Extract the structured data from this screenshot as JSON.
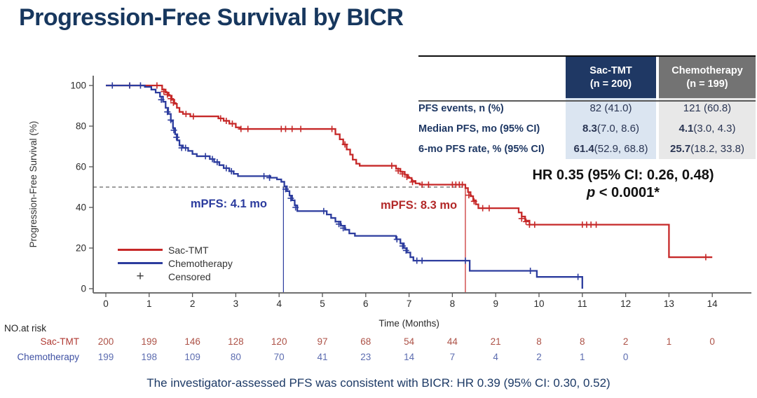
{
  "slide": {
    "title": "Progression-Free Survival by BICR",
    "footer": "The investigator-assessed PFS was consistent with BICR: HR 0.39 (95% CI: 0.30, 0.52)"
  },
  "chart_data": {
    "type": "line",
    "subtype": "kaplan-meier-step",
    "title": "",
    "xlabel": "Time (Months)",
    "ylabel": "Progression-Free Survival (%)",
    "xlim": [
      0,
      14
    ],
    "ylim": [
      0,
      100
    ],
    "xticks": [
      0,
      1,
      2,
      3,
      4,
      5,
      6,
      7,
      8,
      9,
      10,
      11,
      12,
      13,
      14
    ],
    "yticks": [
      0,
      20,
      40,
      60,
      80,
      100
    ],
    "grid": false,
    "legend_position": "lower-left-inside",
    "reference_line_y": 50,
    "series": [
      {
        "name": "Sac-TMT",
        "color": "#c62828",
        "median_pfs_months": 8.3,
        "median_line_x": 8.3,
        "end_x": 14.0,
        "steps": [
          [
            0,
            100
          ],
          [
            1.3,
            98
          ],
          [
            1.38,
            96.5
          ],
          [
            1.45,
            95
          ],
          [
            1.52,
            93
          ],
          [
            1.58,
            91
          ],
          [
            1.64,
            89
          ],
          [
            1.7,
            87
          ],
          [
            1.78,
            86
          ],
          [
            1.95,
            84.8
          ],
          [
            2.6,
            83.8
          ],
          [
            2.72,
            82.6
          ],
          [
            2.85,
            81.2
          ],
          [
            3.0,
            79.4
          ],
          [
            3.1,
            78.6
          ],
          [
            5.3,
            76
          ],
          [
            5.4,
            73.5
          ],
          [
            5.48,
            71
          ],
          [
            5.56,
            68.5
          ],
          [
            5.64,
            66
          ],
          [
            5.7,
            63.5
          ],
          [
            5.78,
            61.5
          ],
          [
            5.86,
            60.5
          ],
          [
            6.7,
            59
          ],
          [
            6.8,
            57.5
          ],
          [
            6.9,
            56
          ],
          [
            6.98,
            54.5
          ],
          [
            7.06,
            53
          ],
          [
            7.15,
            51.8
          ],
          [
            7.25,
            51.2
          ],
          [
            8.3,
            49.5
          ],
          [
            8.36,
            47.5
          ],
          [
            8.42,
            45.5
          ],
          [
            8.48,
            43.5
          ],
          [
            8.54,
            41.5
          ],
          [
            8.6,
            39.6
          ],
          [
            9.53,
            37.5
          ],
          [
            9.6,
            35.5
          ],
          [
            9.68,
            33.5
          ],
          [
            9.78,
            31.5
          ],
          [
            13.0,
            15.5
          ]
        ],
        "censors": [
          [
            0.55,
            100
          ],
          [
            1.18,
            100
          ],
          [
            1.34,
            97
          ],
          [
            1.42,
            95.5
          ],
          [
            1.5,
            93.5
          ],
          [
            1.56,
            91.5
          ],
          [
            1.85,
            86
          ],
          [
            2.02,
            84.8
          ],
          [
            2.65,
            83.8
          ],
          [
            2.78,
            82.6
          ],
          [
            2.92,
            81.2
          ],
          [
            3.12,
            78.6
          ],
          [
            3.28,
            78.6
          ],
          [
            4.05,
            78.6
          ],
          [
            4.15,
            78.6
          ],
          [
            4.3,
            78.6
          ],
          [
            4.5,
            78.6
          ],
          [
            5.22,
            78.6
          ],
          [
            5.52,
            71
          ],
          [
            6.6,
            60.5
          ],
          [
            6.75,
            58
          ],
          [
            6.85,
            56.5
          ],
          [
            6.95,
            55
          ],
          [
            7.08,
            52.5
          ],
          [
            7.3,
            51.2
          ],
          [
            7.45,
            51.2
          ],
          [
            8.0,
            51.2
          ],
          [
            8.08,
            51.2
          ],
          [
            8.16,
            51.2
          ],
          [
            8.23,
            51.2
          ],
          [
            8.38,
            46
          ],
          [
            8.5,
            43
          ],
          [
            8.7,
            39.6
          ],
          [
            8.85,
            39.6
          ],
          [
            9.6,
            34.5
          ],
          [
            9.7,
            33
          ],
          [
            9.78,
            31.5
          ],
          [
            9.9,
            31.5
          ],
          [
            11.0,
            31.5
          ],
          [
            11.1,
            31.5
          ],
          [
            11.2,
            31.5
          ],
          [
            11.32,
            31.5
          ],
          [
            13.85,
            15.5
          ]
        ]
      },
      {
        "name": "Chemotherapy",
        "color": "#2c3c9e",
        "median_pfs_months": 4.1,
        "median_line_x": 4.1,
        "end_x": 11.0,
        "steps": [
          [
            0,
            100
          ],
          [
            0.9,
            99.3
          ],
          [
            1.05,
            98
          ],
          [
            1.15,
            96.5
          ],
          [
            1.25,
            94.5
          ],
          [
            1.32,
            92
          ],
          [
            1.38,
            89
          ],
          [
            1.44,
            86
          ],
          [
            1.5,
            82.5
          ],
          [
            1.55,
            79
          ],
          [
            1.6,
            76
          ],
          [
            1.65,
            73
          ],
          [
            1.7,
            70.5
          ],
          [
            1.78,
            69.3
          ],
          [
            1.9,
            67.8
          ],
          [
            2.0,
            66.3
          ],
          [
            2.1,
            65.2
          ],
          [
            2.4,
            63.8
          ],
          [
            2.5,
            62.3
          ],
          [
            2.62,
            60.8
          ],
          [
            2.72,
            59.3
          ],
          [
            2.85,
            57.8
          ],
          [
            2.95,
            56.5
          ],
          [
            3.05,
            55.4
          ],
          [
            3.8,
            54.6
          ],
          [
            3.95,
            53.8
          ],
          [
            4.05,
            52.6
          ],
          [
            4.12,
            50.4
          ],
          [
            4.18,
            48
          ],
          [
            4.24,
            45.8
          ],
          [
            4.3,
            43.5
          ],
          [
            4.36,
            41
          ],
          [
            4.42,
            38.2
          ],
          [
            5.1,
            36.5
          ],
          [
            5.2,
            34.8
          ],
          [
            5.3,
            33
          ],
          [
            5.42,
            31
          ],
          [
            5.52,
            29
          ],
          [
            5.62,
            27.2
          ],
          [
            5.75,
            26
          ],
          [
            6.7,
            24.3
          ],
          [
            6.8,
            22.3
          ],
          [
            6.88,
            20
          ],
          [
            6.95,
            17.8
          ],
          [
            7.03,
            15.5
          ],
          [
            7.1,
            13.8
          ],
          [
            8.4,
            8.8
          ],
          [
            9.95,
            5.8
          ],
          [
            11.0,
            0
          ]
        ],
        "censors": [
          [
            0.15,
            100
          ],
          [
            0.55,
            100
          ],
          [
            0.8,
            100
          ],
          [
            1.28,
            93
          ],
          [
            1.42,
            87
          ],
          [
            1.5,
            83
          ],
          [
            1.57,
            78
          ],
          [
            1.63,
            74.5
          ],
          [
            1.75,
            69.3
          ],
          [
            1.84,
            69.3
          ],
          [
            2.3,
            65.2
          ],
          [
            2.46,
            63.8
          ],
          [
            2.57,
            62.3
          ],
          [
            2.78,
            59.3
          ],
          [
            2.9,
            57.8
          ],
          [
            3.65,
            55.4
          ],
          [
            3.78,
            54.6
          ],
          [
            4.15,
            49
          ],
          [
            4.27,
            44.5
          ],
          [
            4.38,
            40
          ],
          [
            5.03,
            38.2
          ],
          [
            5.38,
            31.8
          ],
          [
            5.48,
            29.8
          ],
          [
            6.72,
            24.3
          ],
          [
            6.85,
            21
          ],
          [
            6.93,
            18.8
          ],
          [
            7.18,
            13.8
          ],
          [
            7.3,
            13.8
          ],
          [
            8.3,
            13.8
          ],
          [
            9.8,
            8.8
          ],
          [
            10.9,
            5.8
          ]
        ]
      }
    ],
    "annotations": [
      {
        "text": "mPFS: 4.1 mo",
        "color": "#2c3c9e",
        "series": "Chemotherapy"
      },
      {
        "text": "mPFS: 8.3 mo",
        "color": "#b32a2a",
        "series": "Sac-TMT"
      }
    ]
  },
  "legend": {
    "items": [
      {
        "label": "Sac-TMT",
        "type": "line",
        "color": "#c62828"
      },
      {
        "label": "Chemotherapy",
        "type": "line",
        "color": "#2c3c9e"
      },
      {
        "label": "Censored",
        "type": "plus",
        "symbol": "+",
        "color": "#3a3a3a"
      }
    ]
  },
  "summary_table": {
    "columns": [
      {
        "title": "Sac-TMT",
        "subtitle": "(n = 200)",
        "header_bg": "#1f3864"
      },
      {
        "title": "Chemotherapy",
        "subtitle": "(n = 199)",
        "header_bg": "#737373"
      }
    ],
    "rows": [
      {
        "label": "PFS events, n (%)",
        "values": [
          {
            "bold_part": "",
            "rest": "82 (41.0)"
          },
          {
            "bold_part": "",
            "rest": "121 (60.8)"
          }
        ]
      },
      {
        "label": "Median PFS, mo (95% CI)",
        "values": [
          {
            "bold_part": "8.3",
            "rest": " (7.0, 8.6)"
          },
          {
            "bold_part": "4.1",
            "rest": " (3.0, 4.3)"
          }
        ]
      },
      {
        "label": "6-mo PFS rate, %  (95% CI)",
        "values": [
          {
            "bold_part": "61.4",
            "rest": " (52.9, 68.8)"
          },
          {
            "bold_part": "25.7",
            "rest": " (18.2, 33.8)"
          }
        ]
      }
    ]
  },
  "hr_annotation": {
    "line1": "HR 0.35 (95% CI: 0.26, 0.48)",
    "p_italic": "p",
    "p_rest": " < 0.0001*"
  },
  "risk_table": {
    "title": "NO.at risk",
    "rows": [
      {
        "label": "Sac-TMT",
        "label_color": "#b03a33",
        "value_color": "#ad5247",
        "values": [
          200,
          199,
          146,
          128,
          120,
          97,
          68,
          54,
          44,
          21,
          8,
          8,
          2,
          1,
          0
        ]
      },
      {
        "label": "Chemotherapy",
        "label_color": "#3f51a3",
        "value_color": "#5c6cb0",
        "values": [
          199,
          198,
          109,
          80,
          70,
          41,
          23,
          14,
          7,
          4,
          2,
          1,
          0
        ]
      }
    ]
  }
}
